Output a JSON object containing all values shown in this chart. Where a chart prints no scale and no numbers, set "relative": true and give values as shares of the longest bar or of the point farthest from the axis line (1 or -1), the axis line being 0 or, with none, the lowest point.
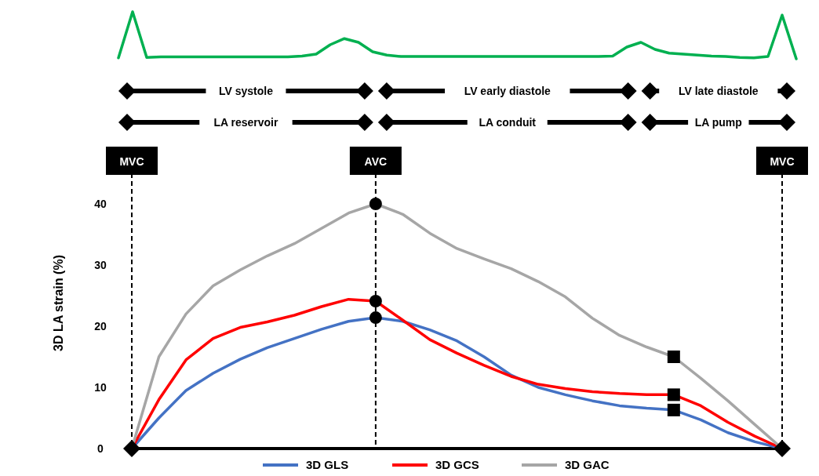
{
  "chart_data": [
    {
      "type": "line",
      "relative": true,
      "categories": [
        null,
        null,
        null,
        null,
        null,
        null,
        null,
        null,
        null,
        null,
        null,
        null,
        null,
        null,
        null,
        null,
        null,
        null,
        null,
        null,
        null,
        null,
        null,
        null,
        null,
        null,
        null,
        null,
        null,
        null,
        null,
        null,
        null,
        null,
        null,
        null,
        null,
        null,
        null,
        null,
        null,
        null,
        null,
        null,
        null,
        null,
        null,
        null,
        null
      ],
      "line_style": "solid",
      "series": [
        {
          "color": "#00b050",
          "values": [
            0.02,
            1,
            0.03,
            0.04,
            0.04,
            0.04,
            0.04,
            0.04,
            0.04,
            0.04,
            0.04,
            0.04,
            0.04,
            0.06,
            0.1,
            0.3,
            0.43,
            0.35,
            0.15,
            0.08,
            0.05,
            0.05,
            0.05,
            0.05,
            0.05,
            0.05,
            0.05,
            0.05,
            0.05,
            0.05,
            0.05,
            0.05,
            0.05,
            0.05,
            0.05,
            0.06,
            0.25,
            0.35,
            0.2,
            0.12,
            0.1,
            0.08,
            0.06,
            0.05,
            0.03,
            0.02,
            0.05,
            0.93,
            0
          ]
        }
      ]
    },
    {
      "type": "line",
      "ylabel": "3D LA strain (%)",
      "categories": [
        null,
        null,
        null,
        null,
        null,
        null,
        null,
        null,
        null,
        null,
        null,
        null,
        null,
        null,
        null,
        null,
        null,
        null,
        null,
        null,
        null,
        null,
        null,
        null,
        null
      ],
      "ylim": [
        0,
        45
      ],
      "yticks": [
        0,
        10,
        20,
        30,
        40
      ],
      "tick_labels": "y",
      "grid": false,
      "legend": "bottom",
      "line_style": "solid",
      "series": [
        {
          "name": "3D GLS",
          "color": "#4472c4",
          "values": [
            0,
            5,
            9.5,
            12.3,
            14.6,
            16.5,
            18,
            19.5,
            20.8,
            21.4,
            20.8,
            19.4,
            17.6,
            15,
            12,
            10,
            8.8,
            7.8,
            7,
            6.6,
            6.3,
            4.7,
            2.6,
            1.1,
            0
          ]
        },
        {
          "name": "3D GCS",
          "color": "#ff0000",
          "values": [
            0,
            8,
            14.5,
            18,
            19.8,
            20.7,
            21.8,
            23.2,
            24.4,
            24.1,
            21,
            17.8,
            15.6,
            13.6,
            11.8,
            10.5,
            9.8,
            9.3,
            9,
            8.8,
            8.8,
            7,
            4.3,
            2,
            0
          ]
        },
        {
          "name": "3D GAC",
          "color": "#a6a6a6",
          "values": [
            0,
            15,
            22,
            26.6,
            29.2,
            31.5,
            33.5,
            36,
            38.5,
            40,
            38.3,
            35.2,
            32.7,
            31,
            29.4,
            27.3,
            24.8,
            21.3,
            18.5,
            16.6,
            15,
            11.5,
            7.8,
            3.9,
            0
          ]
        }
      ],
      "annotations": [
        "LV systole",
        "LV early diastole",
        "LV late diastole",
        "LA reservoir",
        "LA conduit",
        "LA pump",
        "MVC",
        "AVC",
        "MVC"
      ]
    }
  ]
}
